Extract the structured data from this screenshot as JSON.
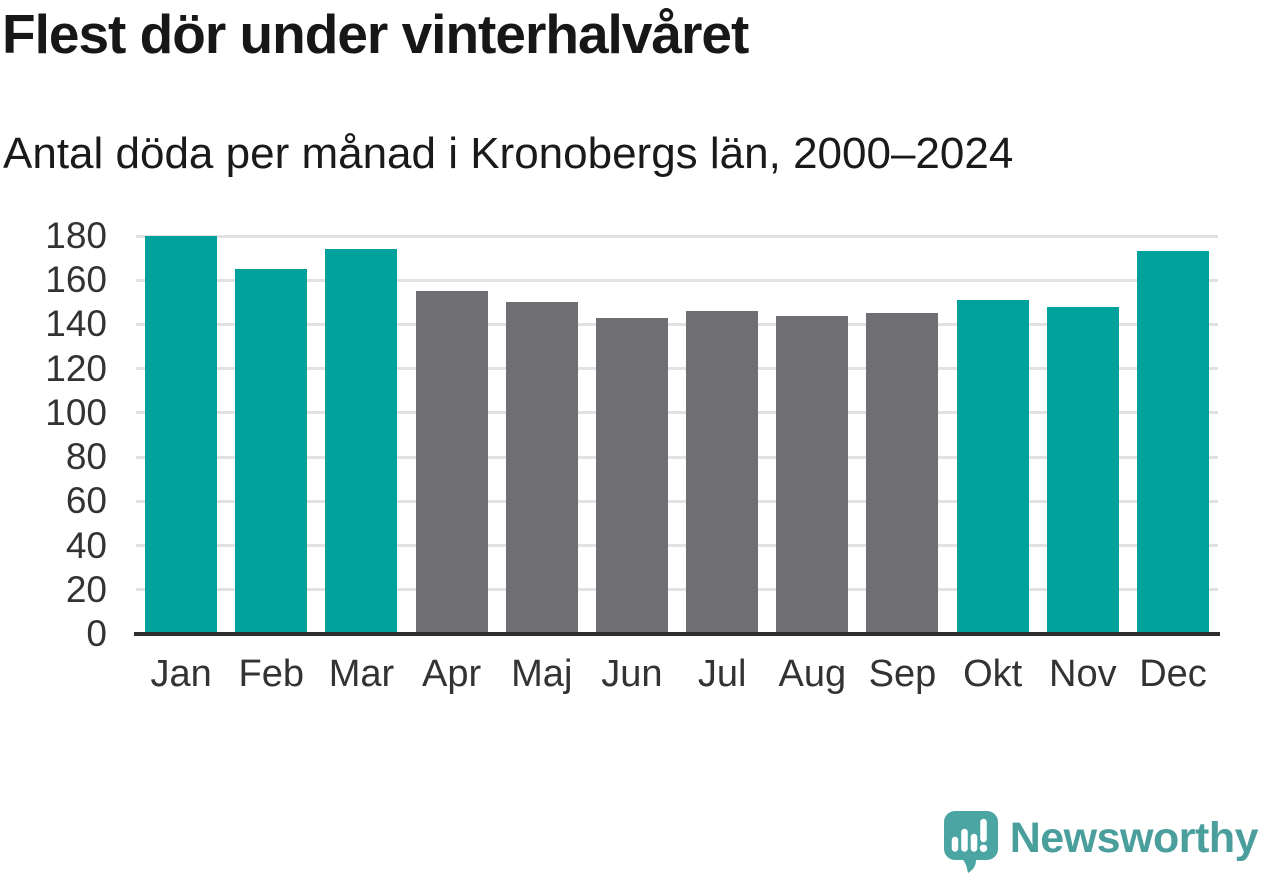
{
  "header": {
    "title": "Flest dör under vinterhalvåret",
    "subtitle": "Antal döda per månad i Kronobergs län, 2000–2024"
  },
  "chart_data": {
    "type": "bar",
    "title": "Flest dör under vinterhalvåret",
    "subtitle": "Antal döda per månad i Kronobergs län, 2000–2024",
    "categories": [
      "Jan",
      "Feb",
      "Mar",
      "Apr",
      "Maj",
      "Jun",
      "Jul",
      "Aug",
      "Sep",
      "Okt",
      "Nov",
      "Dec"
    ],
    "values": [
      180,
      165,
      174,
      155,
      150,
      143,
      146,
      144,
      145,
      151,
      148,
      173
    ],
    "bar_seasons": [
      "winter",
      "winter",
      "winter",
      "summer",
      "summer",
      "summer",
      "summer",
      "summer",
      "summer",
      "winter",
      "winter",
      "winter"
    ],
    "colors": {
      "winter": "#00A29B",
      "summer": "#6E6E73"
    },
    "xlabel": "",
    "ylabel": "",
    "ylim": [
      0,
      180
    ],
    "yticks": [
      0,
      20,
      40,
      60,
      80,
      100,
      120,
      140,
      160,
      180
    ],
    "grid": true,
    "legend": "none",
    "gridline_color": "#e2e2e2",
    "axis_line_color": "#2d2d2d",
    "tick_label_color": "#333333"
  },
  "footer": {
    "brand": "Newsworthy",
    "logo_icon": "newsworthy-speech-bubble-bar-chart-icon",
    "brand_color": "#4a9e9b",
    "icon_color": "#4BA5A2"
  }
}
